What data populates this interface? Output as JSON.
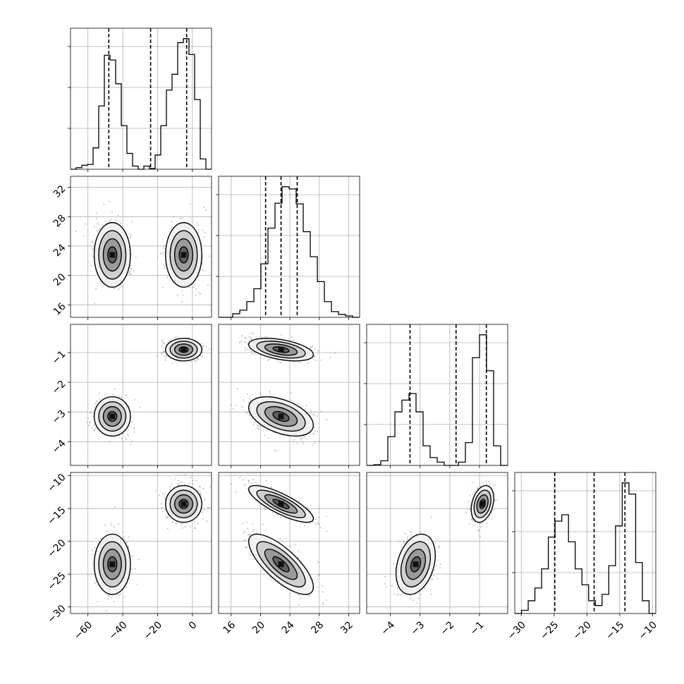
{
  "chart_data": {
    "type": "corner",
    "grid": true,
    "parameters": [
      {
        "range": [
          -70,
          11
        ],
        "ticks": [
          -60,
          -40,
          -20,
          0
        ],
        "tick_labels": [
          "−60",
          "−40",
          "−20",
          "0"
        ],
        "quantiles": [
          -48,
          -24,
          -3.3
        ],
        "histogram": [
          0,
          2,
          5,
          6,
          27,
          80,
          144,
          138,
          108,
          55,
          20,
          4,
          0,
          4,
          1,
          18,
          55,
          100,
          120,
          160,
          165,
          145,
          88,
          13,
          0
        ]
      },
      {
        "range": [
          14.3,
          33.5
        ],
        "ticks": [
          16,
          20,
          24,
          28,
          32
        ],
        "tick_labels": [
          "16",
          "20",
          "24",
          "28",
          "32"
        ],
        "quantiles": [
          20.7,
          22.8,
          25.0
        ],
        "histogram": [
          0,
          0,
          5,
          10,
          22,
          40,
          75,
          125,
          160,
          183,
          180,
          159,
          120,
          85,
          50,
          22,
          8,
          4,
          2,
          0
        ]
      },
      {
        "range": [
          -4.8,
          -0.05
        ],
        "ticks": [
          -4,
          -3,
          -2,
          -1
        ],
        "tick_labels": [
          "−4",
          "−3",
          "−2",
          "−1"
        ],
        "quantiles": [
          -3.34,
          -1.79,
          -0.77
        ],
        "histogram": [
          0,
          1,
          7,
          44,
          82,
          100,
          110,
          82,
          30,
          12,
          5,
          0,
          0,
          5,
          35,
          165,
          200,
          145,
          30,
          0
        ]
      },
      {
        "range": [
          -31,
          -9.5
        ],
        "ticks": [
          -30,
          -25,
          -20,
          -15,
          -10
        ],
        "tick_labels": [
          "−30",
          "−25",
          "−20",
          "−15",
          "−10"
        ],
        "quantiles": [
          -24.9,
          -18.9,
          -14.2
        ],
        "histogram": [
          0,
          2,
          8,
          16,
          28,
          48,
          58,
          62,
          45,
          28,
          18,
          8,
          5,
          12,
          30,
          55,
          82,
          75,
          32,
          8,
          0
        ]
      }
    ],
    "modes": [
      {
        "mean": [
          -46,
          22.8,
          -3.15,
          -23.5
        ],
        "sd": [
          5.2,
          2.2,
          0.33,
          2.3
        ],
        "corr": [
          [
            1,
            0,
            0,
            0
          ],
          [
            0,
            1,
            -0.45,
            -0.75
          ],
          [
            0,
            -0.45,
            1,
            0.3
          ],
          [
            0,
            -0.75,
            0.3,
            1
          ]
        ]
      },
      {
        "mean": [
          -5,
          22.8,
          -0.9,
          -14.3
        ],
        "sd": [
          5.2,
          2.2,
          0.19,
          1.4
        ],
        "corr": [
          [
            1,
            0,
            0,
            0
          ],
          [
            0,
            1,
            -0.45,
            -0.8
          ],
          [
            0,
            -0.45,
            1,
            0.3
          ],
          [
            0,
            -0.8,
            0.3,
            1
          ]
        ]
      }
    ]
  }
}
